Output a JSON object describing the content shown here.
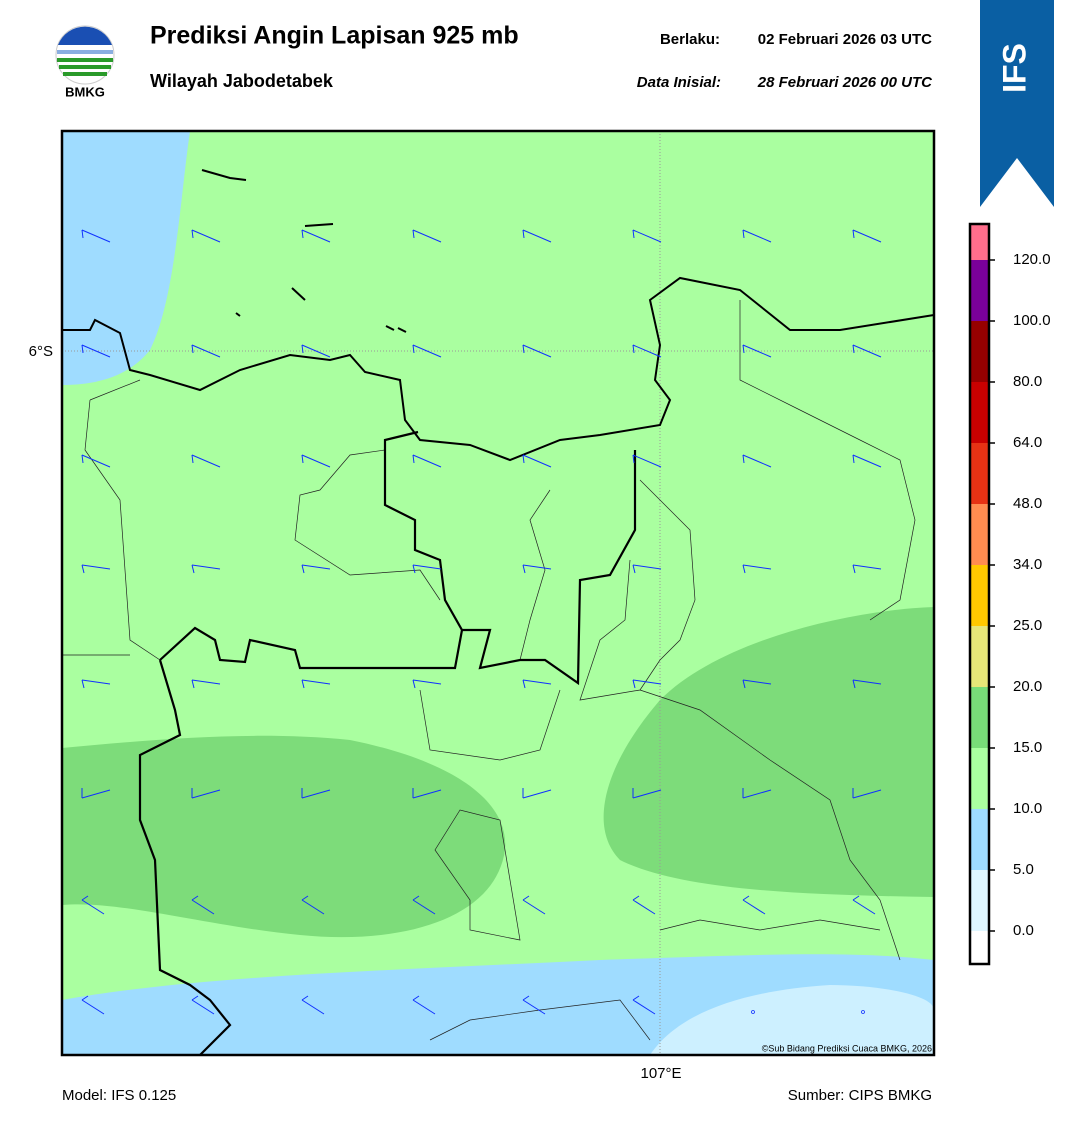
{
  "header": {
    "title": "Prediksi Angin Lapisan 925 mb",
    "subtitle": "Wilayah Jabodetabek",
    "valid_label": "Berlaku:",
    "valid_time": "02 Februari 2026 03 UTC",
    "init_label": "Data Inisial:",
    "init_time": "28 Februari 2026 00 UTC",
    "logo_text": "BMKG",
    "model_badge": "IFS"
  },
  "map": {
    "lat_label": "6°S",
    "lon_label": "107°E",
    "copyright": "©Sub Bidang Prediksi Cuaca BMKG, 2026"
  },
  "colorbar": {
    "levels": [
      {
        "value": 0,
        "label": "0.0"
      },
      {
        "value": 5,
        "label": "5.0"
      },
      {
        "value": 10,
        "label": "10.0"
      },
      {
        "value": 15,
        "label": "15.0"
      },
      {
        "value": 20,
        "label": "20.0"
      },
      {
        "value": 25,
        "label": "25.0"
      },
      {
        "value": 34,
        "label": "34.0"
      },
      {
        "value": 48,
        "label": "48.0"
      },
      {
        "value": 64,
        "label": "64.0"
      },
      {
        "value": 80,
        "label": "80.0"
      },
      {
        "value": 100,
        "label": "100.0"
      },
      {
        "value": 120,
        "label": "120.0"
      }
    ],
    "colors": [
      "#ffffff",
      "#dff6ff",
      "#9fdcff",
      "#aaffa0",
      "#78dc78",
      "#e6e678",
      "#ffc800",
      "#ff8c50",
      "#e63214",
      "#c80000",
      "#960000",
      "#7a009a",
      "#ff6e8c"
    ]
  },
  "footer": {
    "model": "Model: IFS 0.125",
    "source": "Sumber: CIPS BMKG"
  }
}
